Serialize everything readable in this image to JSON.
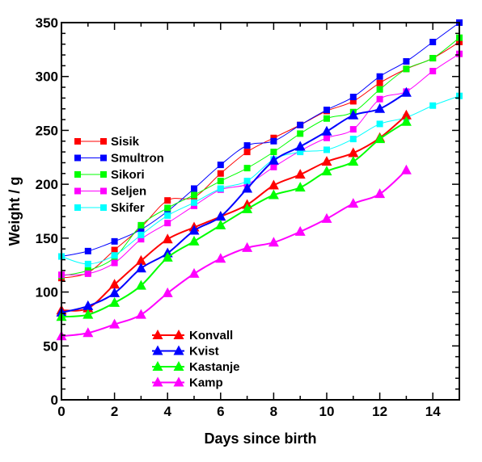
{
  "chart_data": {
    "type": "line",
    "title": "",
    "xlabel": "Days since birth",
    "ylabel": "Weight / g",
    "xlim": [
      0,
      15
    ],
    "ylim": [
      0,
      350
    ],
    "xticks": [
      0,
      2,
      4,
      6,
      8,
      10,
      12,
      14
    ],
    "yticks": [
      0,
      50,
      100,
      150,
      200,
      250,
      300,
      350
    ],
    "grid": false,
    "legends": [
      {
        "placement": "upper-left",
        "entries": [
          "Sisik",
          "Smultron",
          "Sikori",
          "Seljen",
          "Skifer"
        ]
      },
      {
        "placement": "lower-center",
        "entries": [
          "Konvall",
          "Kvist",
          "Kastanje",
          "Kamp"
        ]
      }
    ],
    "series": [
      {
        "name": "Sisik",
        "color": "#ff0000",
        "marker": "square",
        "line_width": 1,
        "x": [
          0,
          1,
          2,
          3,
          4,
          5,
          6,
          7,
          8,
          9,
          10,
          11,
          12,
          13,
          14,
          15
        ],
        "y": [
          113,
          118,
          139,
          160,
          185,
          188,
          210,
          230,
          243,
          255,
          268,
          277,
          294,
          307,
          317,
          332
        ]
      },
      {
        "name": "Smultron",
        "color": "#0000ff",
        "marker": "square",
        "line_width": 1,
        "x": [
          0,
          1,
          2,
          3,
          4,
          5,
          6,
          7,
          8,
          9,
          10,
          11,
          12,
          13,
          14,
          15
        ],
        "y": [
          133,
          138,
          147,
          158,
          175,
          196,
          218,
          236,
          240,
          255,
          269,
          281,
          300,
          314,
          332,
          350
        ]
      },
      {
        "name": "Sikori",
        "color": "#00ff00",
        "marker": "square",
        "line_width": 1,
        "x": [
          0,
          1,
          2,
          3,
          4,
          5,
          6,
          7,
          8,
          9,
          10,
          11,
          12,
          13,
          14,
          15
        ],
        "y": [
          115,
          120,
          132,
          162,
          178,
          190,
          203,
          215,
          230,
          247,
          261,
          267,
          288,
          307,
          317,
          336
        ]
      },
      {
        "name": "Seljen",
        "color": "#ff00ff",
        "marker": "square",
        "line_width": 1,
        "x": [
          0,
          1,
          2,
          3,
          4,
          5,
          6,
          7,
          8,
          9,
          10,
          11,
          12,
          13,
          14,
          15
        ],
        "y": [
          116,
          117,
          127,
          149,
          164,
          180,
          195,
          200,
          216,
          231,
          243,
          251,
          279,
          286,
          305,
          321
        ]
      },
      {
        "name": "Skifer",
        "color": "#00ffff",
        "marker": "square",
        "line_width": 1,
        "x": [
          0,
          1,
          2,
          3,
          4,
          5,
          6,
          7,
          8,
          9,
          10,
          11,
          12,
          13,
          14,
          15
        ],
        "y": [
          133,
          126,
          134,
          153,
          171,
          183,
          196,
          203,
          223,
          230,
          232,
          242,
          256,
          262,
          273,
          282
        ]
      },
      {
        "name": "Konvall",
        "color": "#ff0000",
        "marker": "triangle",
        "line_width": 2,
        "x": [
          0,
          1,
          2,
          3,
          4,
          5,
          6,
          7,
          8,
          9,
          10,
          11,
          12,
          13
        ],
        "y": [
          83,
          85,
          107,
          129,
          149,
          160,
          170,
          181,
          199,
          209,
          221,
          229,
          243,
          264
        ]
      },
      {
        "name": "Kvist",
        "color": "#0000ff",
        "marker": "triangle",
        "line_width": 2,
        "x": [
          0,
          1,
          2,
          3,
          4,
          5,
          6,
          7,
          8,
          9,
          10,
          11,
          12,
          13
        ],
        "y": [
          81,
          87,
          99,
          122,
          136,
          157,
          170,
          196,
          222,
          235,
          249,
          264,
          270,
          285
        ]
      },
      {
        "name": "Kastanje",
        "color": "#00ff00",
        "marker": "triangle",
        "line_width": 2,
        "x": [
          0,
          1,
          2,
          3,
          4,
          5,
          6,
          7,
          8,
          9,
          10,
          11,
          12,
          13
        ],
        "y": [
          77,
          79,
          90,
          106,
          132,
          147,
          162,
          177,
          190,
          197,
          212,
          221,
          242,
          258
        ]
      },
      {
        "name": "Kamp",
        "color": "#ff00ff",
        "marker": "triangle",
        "line_width": 2,
        "x": [
          0,
          1,
          2,
          3,
          4,
          5,
          6,
          7,
          8,
          9,
          10,
          11,
          12,
          13
        ],
        "y": [
          59,
          62,
          70,
          79,
          99,
          117,
          131,
          141,
          146,
          156,
          168,
          182,
          191,
          213
        ]
      }
    ]
  }
}
